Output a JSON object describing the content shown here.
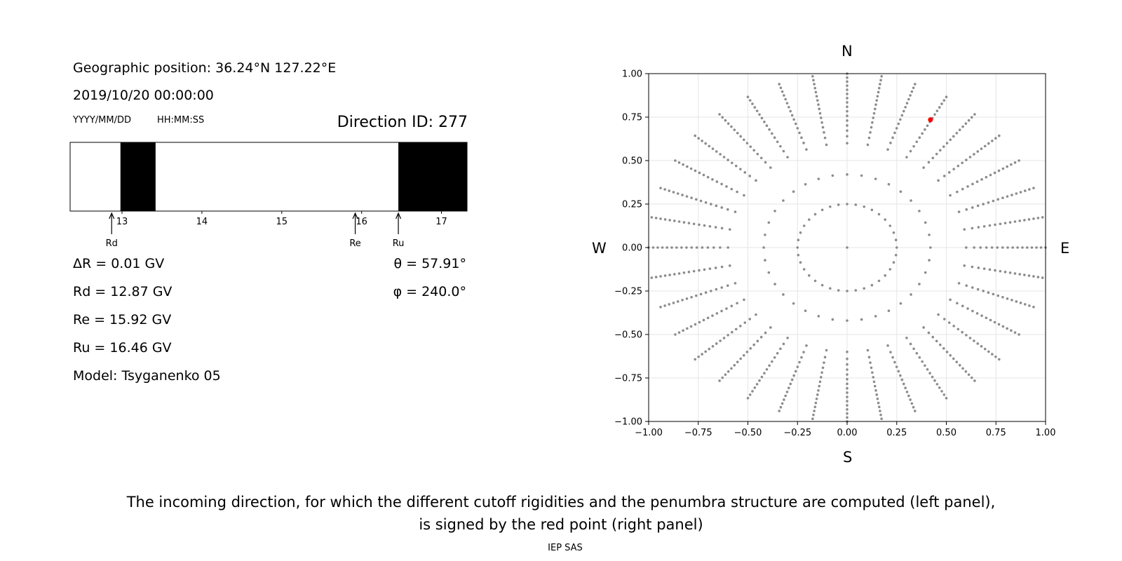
{
  "left_panel": {
    "geo_position": "Geographic position: 36.24°N 127.22°E",
    "datetime": "2019/10/20 00:00:00",
    "date_format": "YYYY/MM/DD",
    "time_format": "HH:MM:SS",
    "direction_id": "Direction ID: 277",
    "delta_r": "ΔR = 0.01 GV",
    "rd": "Rd = 12.87 GV",
    "re": "Re = 15.92 GV",
    "ru": "Ru = 16.46 GV",
    "model": "Model: Tsyganenko 05",
    "theta": "θ = 57.91°",
    "phi": "φ = 240.0°"
  },
  "caption": {
    "line1": "The incoming direction, for which the different cutoff rigidities and the penumbra structure are computed (left panel),",
    "line2": "is signed by the red point (right panel)"
  },
  "footer": "IEP SAS",
  "chart_data": [
    {
      "type": "penumbra-strip",
      "xlim": [
        12.35,
        17.32
      ],
      "x_ticks": [
        "13",
        "14",
        "15",
        "16",
        "17"
      ],
      "x_tick_values": [
        13,
        14,
        15,
        16,
        17
      ],
      "forbidden_bands": [
        [
          12.98,
          13.42
        ],
        [
          16.46,
          17.32
        ]
      ],
      "markers": [
        {
          "label": "Rd",
          "value": 12.87
        },
        {
          "label": "Re",
          "value": 15.92
        },
        {
          "label": "Ru",
          "value": 16.46
        }
      ],
      "colors": {
        "forbidden": "#000000",
        "allowed": "#ffffff"
      }
    },
    {
      "type": "scatter",
      "xlim": [
        -1.0,
        1.0
      ],
      "ylim": [
        -1.0,
        1.0
      ],
      "x_ticks": [
        "−1.00",
        "−0.75",
        "−0.50",
        "−0.25",
        "0.00",
        "0.25",
        "0.50",
        "0.75",
        "1.00"
      ],
      "y_ticks": [
        "1.00",
        "0.75",
        "0.50",
        "0.25",
        "0.00",
        "−0.25",
        "−0.50",
        "−0.75",
        "−1.00"
      ],
      "tick_values": [
        -1.0,
        -0.75,
        -0.5,
        -0.25,
        0.0,
        0.25,
        0.5,
        0.75,
        1.0
      ],
      "grid": true,
      "compass": {
        "north": "N",
        "south": "S",
        "west": "W",
        "east": "E"
      },
      "direction_grid": {
        "azimuth_step_deg": 10,
        "center_point": [
          0,
          0
        ],
        "ring_radii": [
          0.25,
          0.42
        ],
        "ray_start_radius": 0.6,
        "ray_end_radius": 1.0,
        "ray_dots": 16
      },
      "highlight_point": {
        "x": 0.42,
        "y": 0.735
      },
      "colors": {
        "grid_points": "#8c8c8c",
        "highlight": "#ff0000"
      }
    }
  ]
}
